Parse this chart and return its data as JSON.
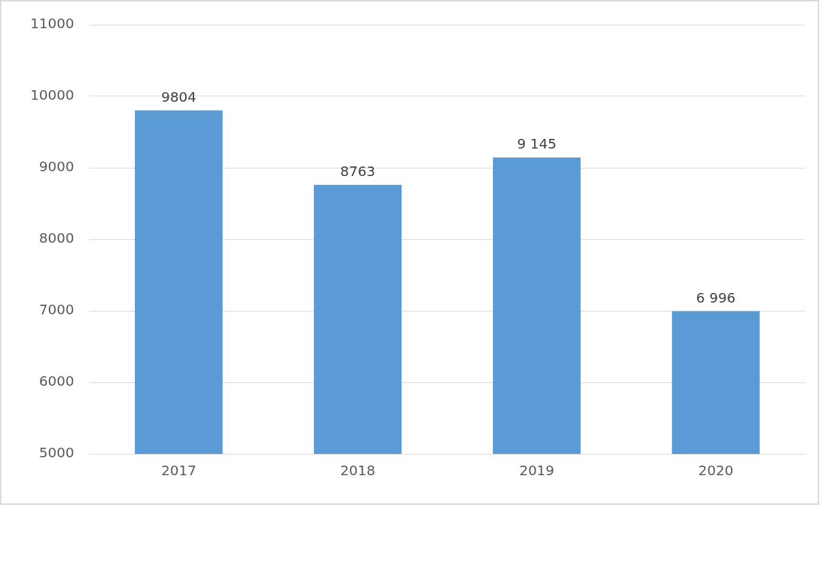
{
  "chart_data": {
    "type": "bar",
    "categories": [
      "2017",
      "2018",
      "2019",
      "2020"
    ],
    "values": [
      9804,
      8763,
      9145,
      6996
    ],
    "value_labels": [
      "9804",
      "8763",
      "9 145",
      "6 996"
    ],
    "color": "#5b9bd5",
    "ylim": [
      5000,
      11000
    ],
    "yticks": [
      5000,
      6000,
      7000,
      8000,
      9000,
      10000,
      11000
    ],
    "grid": "y"
  }
}
